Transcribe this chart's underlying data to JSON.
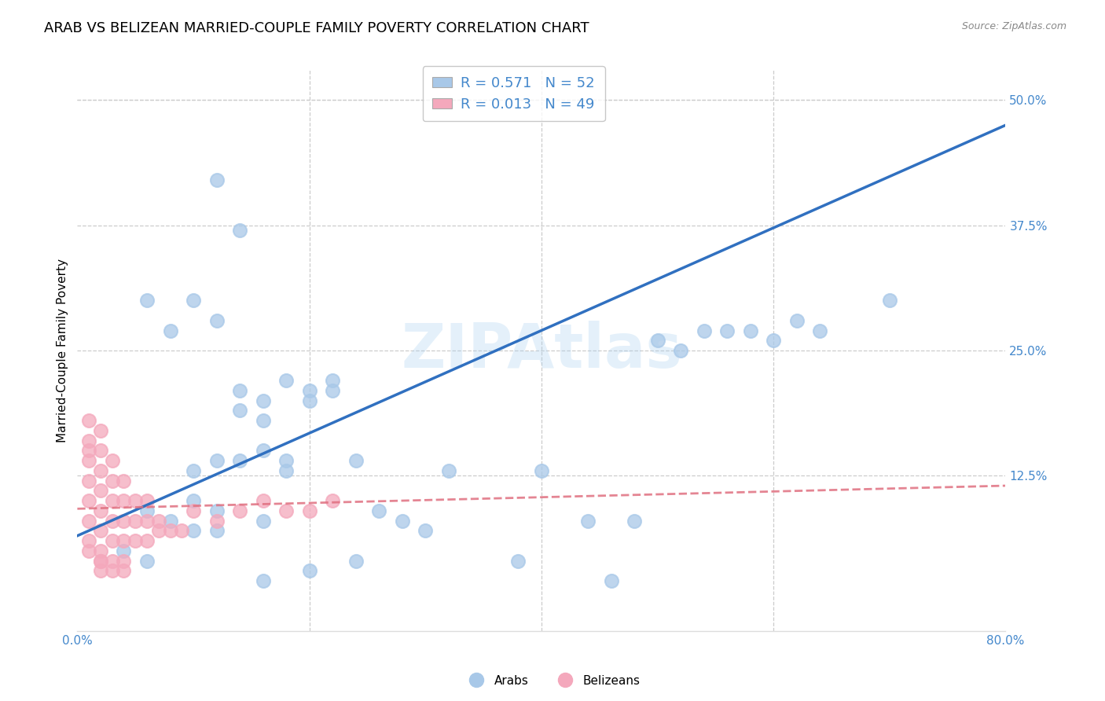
{
  "title": "ARAB VS BELIZEAN MARRIED-COUPLE FAMILY POVERTY CORRELATION CHART",
  "source": "Source: ZipAtlas.com",
  "ylabel": "Married-Couple Family Poverty",
  "xlim": [
    0.0,
    0.8
  ],
  "ylim": [
    -0.03,
    0.53
  ],
  "yticks": [
    0.0,
    0.125,
    0.25,
    0.375,
    0.5
  ],
  "yticklabels": [
    "",
    "12.5%",
    "25.0%",
    "37.5%",
    "50.0%"
  ],
  "arab_R": 0.571,
  "arab_N": 52,
  "belizean_R": 0.013,
  "belizean_N": 49,
  "arab_color": "#a8c8e8",
  "belizean_color": "#f4a8bc",
  "arab_line_color": "#3070c0",
  "belizean_line_color": "#e07080",
  "watermark": "ZIPAtlas",
  "arab_x": [
    0.12,
    0.14,
    0.06,
    0.08,
    0.1,
    0.12,
    0.14,
    0.16,
    0.18,
    0.14,
    0.16,
    0.18,
    0.2,
    0.22,
    0.14,
    0.16,
    0.1,
    0.12,
    0.04,
    0.06,
    0.06,
    0.08,
    0.1,
    0.12,
    0.16,
    0.18,
    0.2,
    0.22,
    0.24,
    0.1,
    0.12,
    0.4,
    0.44,
    0.5,
    0.52,
    0.54,
    0.58,
    0.6,
    0.62,
    0.3,
    0.38,
    0.24,
    0.28,
    0.32,
    0.46,
    0.48,
    0.56,
    0.64,
    0.7,
    0.16,
    0.2,
    0.26
  ],
  "arab_y": [
    0.42,
    0.37,
    0.3,
    0.27,
    0.3,
    0.28,
    0.21,
    0.2,
    0.22,
    0.19,
    0.18,
    0.14,
    0.21,
    0.22,
    0.14,
    0.15,
    0.13,
    0.14,
    0.05,
    0.04,
    0.09,
    0.08,
    0.07,
    0.07,
    0.08,
    0.13,
    0.2,
    0.21,
    0.14,
    0.1,
    0.09,
    0.13,
    0.08,
    0.26,
    0.25,
    0.27,
    0.27,
    0.26,
    0.28,
    0.07,
    0.04,
    0.04,
    0.08,
    0.13,
    0.02,
    0.08,
    0.27,
    0.27,
    0.3,
    0.02,
    0.03,
    0.09
  ],
  "belizean_x": [
    0.01,
    0.01,
    0.01,
    0.01,
    0.01,
    0.01,
    0.01,
    0.01,
    0.02,
    0.02,
    0.02,
    0.02,
    0.02,
    0.02,
    0.02,
    0.02,
    0.02,
    0.03,
    0.03,
    0.03,
    0.03,
    0.03,
    0.03,
    0.04,
    0.04,
    0.04,
    0.04,
    0.04,
    0.05,
    0.05,
    0.05,
    0.06,
    0.06,
    0.06,
    0.07,
    0.07,
    0.08,
    0.09,
    0.1,
    0.12,
    0.14,
    0.16,
    0.18,
    0.2,
    0.22,
    0.01,
    0.02,
    0.03,
    0.04
  ],
  "belizean_y": [
    0.18,
    0.16,
    0.15,
    0.14,
    0.12,
    0.1,
    0.08,
    0.06,
    0.17,
    0.15,
    0.13,
    0.11,
    0.09,
    0.07,
    0.05,
    0.04,
    0.03,
    0.14,
    0.12,
    0.1,
    0.08,
    0.06,
    0.04,
    0.12,
    0.1,
    0.08,
    0.06,
    0.04,
    0.1,
    0.08,
    0.06,
    0.1,
    0.08,
    0.06,
    0.08,
    0.07,
    0.07,
    0.07,
    0.09,
    0.08,
    0.09,
    0.1,
    0.09,
    0.09,
    0.1,
    0.05,
    0.04,
    0.03,
    0.03
  ],
  "arab_line_x": [
    0.0,
    0.8
  ],
  "arab_line_y": [
    0.065,
    0.475
  ],
  "belizean_line_x": [
    0.0,
    0.8
  ],
  "belizean_line_y": [
    0.092,
    0.115
  ],
  "grid_color": "#cccccc",
  "background_color": "#ffffff",
  "tick_color": "#4488cc",
  "title_fontsize": 13,
  "label_fontsize": 11,
  "tick_fontsize": 11,
  "legend_fontsize": 13
}
